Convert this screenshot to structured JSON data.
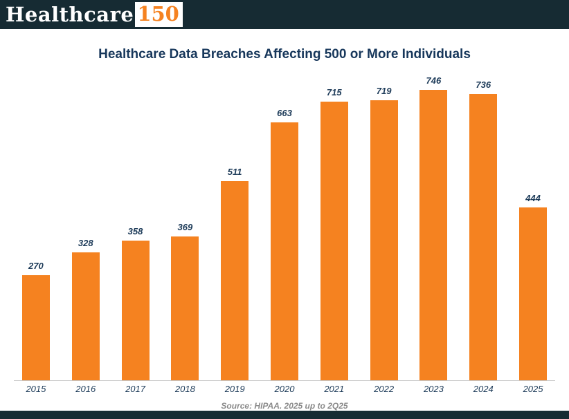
{
  "logo": {
    "text_primary": "Healthcare",
    "text_accent": "150"
  },
  "title": "Healthcare Data Breaches Affecting 500 or More Individuals",
  "source": "Source: HIPAA. 2025 up to 2Q25",
  "colors": {
    "bar": "#F58220",
    "header_bg": "#162B33",
    "title_text": "#17375B",
    "axis_text": "#1C3A58",
    "source_text": "#8A8A8A"
  },
  "chart_data": {
    "type": "bar",
    "title": "Healthcare Data Breaches Affecting 500 or More Individuals",
    "categories": [
      "2015",
      "2016",
      "2017",
      "2018",
      "2019",
      "2020",
      "2021",
      "2022",
      "2023",
      "2024",
      "2025"
    ],
    "values": [
      270,
      328,
      358,
      369,
      511,
      663,
      715,
      719,
      746,
      736,
      444
    ],
    "xlabel": "",
    "ylabel": "",
    "ylim": [
      0,
      800
    ],
    "grid": false,
    "legend": false,
    "bar_color": "#F58220",
    "value_labels": true,
    "annotation": "Source: HIPAA. 2025 up to 2Q25"
  }
}
